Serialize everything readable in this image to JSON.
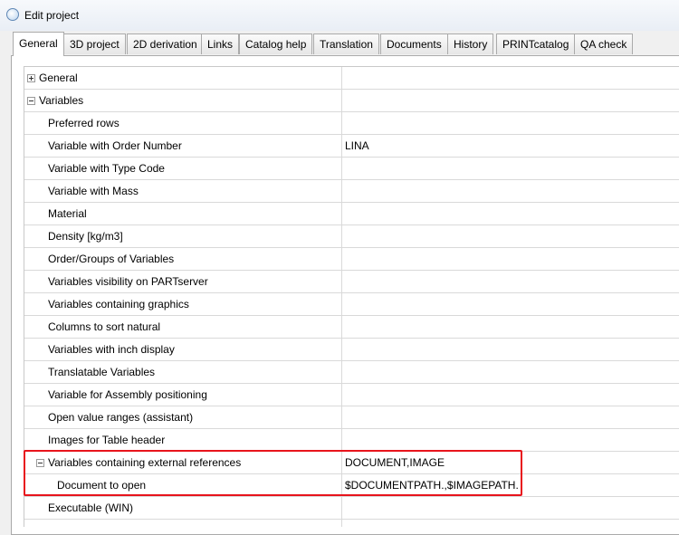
{
  "window": {
    "title": "Edit project"
  },
  "tabs": [
    "General",
    "3D project",
    "2D derivation",
    "Links",
    "Catalog help",
    "Translation",
    "Documents",
    "History",
    "PRINTcatalog",
    "QA check"
  ],
  "rows": [
    {
      "label": "General"
    },
    {
      "label": "Variables"
    },
    {
      "label": "Preferred rows"
    },
    {
      "label": "Variable with Order Number",
      "value": "LINA"
    },
    {
      "label": "Variable with Type Code"
    },
    {
      "label": "Variable with Mass"
    },
    {
      "label": "Material"
    },
    {
      "label": "Density [kg/m3]"
    },
    {
      "label": "Order/Groups of Variables"
    },
    {
      "label": "Variables visibility on PARTserver"
    },
    {
      "label": "Variables containing graphics"
    },
    {
      "label": "Columns to sort natural"
    },
    {
      "label": "Variables with inch display"
    },
    {
      "label": "Translatable Variables"
    },
    {
      "label": "Variable for Assembly positioning"
    },
    {
      "label": "Open value ranges (assistant)"
    },
    {
      "label": "Images for Table header"
    },
    {
      "label": "Variables containing external references",
      "value": "DOCUMENT,IMAGE"
    },
    {
      "label": "Document to open",
      "value": "$DOCUMENTPATH.,$IMAGEPATH."
    },
    {
      "label": "Executable (WIN)"
    }
  ]
}
